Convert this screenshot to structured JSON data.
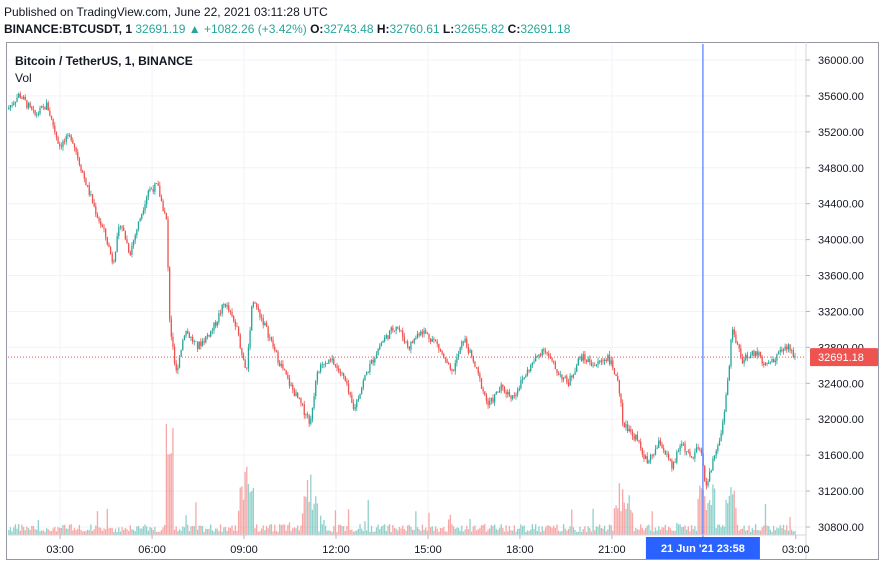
{
  "header": {
    "published": "Published on TradingView.com, June 22, 2021 03:11:28 UTC",
    "symbol": "BINANCE:BTCUSDT, 1",
    "last": "32691.19",
    "change": "+1082.26 (+3.42%)",
    "o_label": "O:",
    "o_value": "32743.48",
    "h_label": "H:",
    "h_value": "32760.61",
    "l_label": "L:",
    "l_value": "32655.82",
    "c_label": "C:",
    "c_value": "32691.18"
  },
  "legend": {
    "title": "Bitcoin / TetherUS, 1, BINANCE",
    "vol": "Vol"
  },
  "colors": {
    "up": "#26a69a",
    "down": "#ef5350",
    "crosshair": "#2962ff",
    "price_label": "#ef5350"
  },
  "chart_data": {
    "type": "candlestick",
    "symbol": "BTCUSDT",
    "ylim": [
      30800,
      36000
    ],
    "y_ticks": [
      "36000.00",
      "35600.00",
      "35200.00",
      "34800.00",
      "34400.00",
      "34000.00",
      "33600.00",
      "33200.00",
      "32800.00",
      "32400.00",
      "32000.00",
      "31600.00",
      "31200.00",
      "30800.00"
    ],
    "x_ticks": [
      "03:00",
      "06:00",
      "09:00",
      "12:00",
      "15:00",
      "18:00",
      "21:00",
      "03:00"
    ],
    "x_tick_hours": [
      3,
      6,
      9,
      12,
      15,
      18,
      21,
      27
    ],
    "x_range_hours": [
      1.3,
      27.3
    ],
    "crosshair_label": "21 Jun '21   23:58",
    "crosshair_hour": 23.97,
    "last_price_label": "32691.18",
    "last_price": 32691.18,
    "path": [
      {
        "t": 1.3,
        "p": 35450
      },
      {
        "t": 1.7,
        "p": 35620
      },
      {
        "t": 2.2,
        "p": 35380
      },
      {
        "t": 2.6,
        "p": 35500
      },
      {
        "t": 3.0,
        "p": 35050
      },
      {
        "t": 3.4,
        "p": 35150
      },
      {
        "t": 3.8,
        "p": 34700
      },
      {
        "t": 4.2,
        "p": 34300
      },
      {
        "t": 4.5,
        "p": 34050
      },
      {
        "t": 4.75,
        "p": 33750
      },
      {
        "t": 5.0,
        "p": 34200
      },
      {
        "t": 5.3,
        "p": 33850
      },
      {
        "t": 5.6,
        "p": 34200
      },
      {
        "t": 5.9,
        "p": 34550
      },
      {
        "t": 6.2,
        "p": 34600
      },
      {
        "t": 6.5,
        "p": 34200
      },
      {
        "t": 6.6,
        "p": 33100
      },
      {
        "t": 6.8,
        "p": 32500
      },
      {
        "t": 7.1,
        "p": 33000
      },
      {
        "t": 7.5,
        "p": 32800
      },
      {
        "t": 8.0,
        "p": 33000
      },
      {
        "t": 8.4,
        "p": 33300
      },
      {
        "t": 8.8,
        "p": 33000
      },
      {
        "t": 9.1,
        "p": 32500
      },
      {
        "t": 9.3,
        "p": 33350
      },
      {
        "t": 9.7,
        "p": 33050
      },
      {
        "t": 10.1,
        "p": 32700
      },
      {
        "t": 10.5,
        "p": 32400
      },
      {
        "t": 10.9,
        "p": 32150
      },
      {
        "t": 11.2,
        "p": 31950
      },
      {
        "t": 11.4,
        "p": 32550
      },
      {
        "t": 11.9,
        "p": 32650
      },
      {
        "t": 12.3,
        "p": 32450
      },
      {
        "t": 12.6,
        "p": 32100
      },
      {
        "t": 13.0,
        "p": 32500
      },
      {
        "t": 13.5,
        "p": 32850
      },
      {
        "t": 14.0,
        "p": 33050
      },
      {
        "t": 14.4,
        "p": 32800
      },
      {
        "t": 14.8,
        "p": 33000
      },
      {
        "t": 15.3,
        "p": 32850
      },
      {
        "t": 15.8,
        "p": 32500
      },
      {
        "t": 16.2,
        "p": 32900
      },
      {
        "t": 16.6,
        "p": 32550
      },
      {
        "t": 17.0,
        "p": 32150
      },
      {
        "t": 17.4,
        "p": 32350
      },
      {
        "t": 17.8,
        "p": 32250
      },
      {
        "t": 18.3,
        "p": 32550
      },
      {
        "t": 18.8,
        "p": 32800
      },
      {
        "t": 19.2,
        "p": 32550
      },
      {
        "t": 19.6,
        "p": 32400
      },
      {
        "t": 20.0,
        "p": 32700
      },
      {
        "t": 20.5,
        "p": 32600
      },
      {
        "t": 20.9,
        "p": 32700
      },
      {
        "t": 21.2,
        "p": 32450
      },
      {
        "t": 21.4,
        "p": 31950
      },
      {
        "t": 21.8,
        "p": 31800
      },
      {
        "t": 22.2,
        "p": 31500
      },
      {
        "t": 22.6,
        "p": 31750
      },
      {
        "t": 23.0,
        "p": 31450
      },
      {
        "t": 23.3,
        "p": 31750
      },
      {
        "t": 23.6,
        "p": 31550
      },
      {
        "t": 23.9,
        "p": 31700
      },
      {
        "t": 24.1,
        "p": 31250
      },
      {
        "t": 24.3,
        "p": 31500
      },
      {
        "t": 24.6,
        "p": 31850
      },
      {
        "t": 24.8,
        "p": 32400
      },
      {
        "t": 24.95,
        "p": 33000
      },
      {
        "t": 25.3,
        "p": 32650
      },
      {
        "t": 25.7,
        "p": 32750
      },
      {
        "t": 26.1,
        "p": 32600
      },
      {
        "t": 26.5,
        "p": 32750
      },
      {
        "t": 26.8,
        "p": 32800
      },
      {
        "t": 27.0,
        "p": 32691
      }
    ]
  }
}
